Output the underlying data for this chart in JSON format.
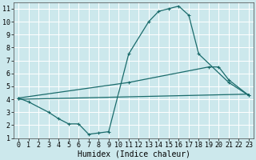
{
  "title": "",
  "xlabel": "Humidex (Indice chaleur)",
  "ylabel": "",
  "bg_color": "#cce8ec",
  "grid_color": "#ffffff",
  "line_color": "#1a6b6b",
  "xlim": [
    -0.5,
    23.5
  ],
  "ylim": [
    1,
    11.5
  ],
  "xticks": [
    0,
    1,
    2,
    3,
    4,
    5,
    6,
    7,
    8,
    9,
    10,
    11,
    12,
    13,
    14,
    15,
    16,
    17,
    18,
    19,
    20,
    21,
    22,
    23
  ],
  "yticks": [
    1,
    2,
    3,
    4,
    5,
    6,
    7,
    8,
    9,
    10,
    11
  ],
  "curve1_x": [
    0,
    1,
    3,
    4,
    5,
    6,
    7,
    8,
    9,
    11,
    13,
    14,
    15,
    16,
    17,
    18,
    21,
    23
  ],
  "curve1_y": [
    4.1,
    3.8,
    3.0,
    2.5,
    2.1,
    2.1,
    1.3,
    1.4,
    1.5,
    7.5,
    10.0,
    10.8,
    11.0,
    11.2,
    10.5,
    7.5,
    5.3,
    4.3
  ],
  "curve2_x": [
    0,
    11,
    19,
    20,
    21,
    23
  ],
  "curve2_y": [
    4.1,
    5.3,
    6.5,
    6.5,
    5.5,
    4.3
  ],
  "curve3_x": [
    0,
    23
  ],
  "curve3_y": [
    4.0,
    4.4
  ],
  "xlabel_fontsize": 7,
  "tick_fontsize": 6
}
